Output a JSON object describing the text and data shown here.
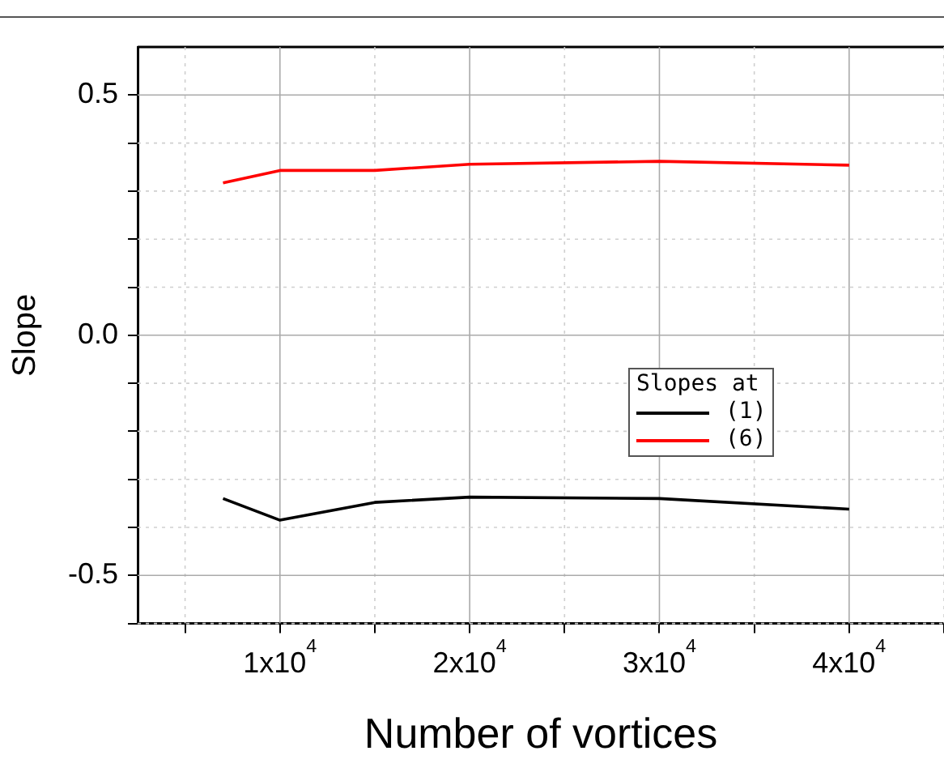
{
  "chart_data": {
    "type": "line",
    "xlabel": "Number of vortices",
    "ylabel": "Slope",
    "legend_title": "Slopes at",
    "xlim": [
      2500,
      45000
    ],
    "ylim": [
      -0.6,
      0.6
    ],
    "xticks": [
      {
        "value": 5000,
        "label": null
      },
      {
        "value": 10000,
        "label": "1x10$^{4}$"
      },
      {
        "value": 15000,
        "label": null
      },
      {
        "value": 20000,
        "label": "2x10$^{4}$"
      },
      {
        "value": 25000,
        "label": null
      },
      {
        "value": 30000,
        "label": "3x10$^{4}$"
      },
      {
        "value": 35000,
        "label": null
      },
      {
        "value": 40000,
        "label": "4x10$^{4}$"
      },
      {
        "value": 45000,
        "label": null
      }
    ],
    "yticks": [
      {
        "value": -0.6,
        "label": null
      },
      {
        "value": -0.5,
        "label": "-0.5"
      },
      {
        "value": -0.4,
        "label": null
      },
      {
        "value": -0.3,
        "label": null
      },
      {
        "value": -0.2,
        "label": null
      },
      {
        "value": -0.1,
        "label": null
      },
      {
        "value": 0,
        "label": "0.0"
      },
      {
        "value": 0.1,
        "label": null
      },
      {
        "value": 0.2,
        "label": null
      },
      {
        "value": 0.3,
        "label": null
      },
      {
        "value": 0.4,
        "label": null
      },
      {
        "value": 0.5,
        "label": "0.5"
      }
    ],
    "x": [
      7000,
      10000,
      15000,
      20000,
      30000,
      40000
    ],
    "series": [
      {
        "name": "(1)",
        "color": "#000000",
        "values": [
          -0.34,
          -0.385,
          -0.348,
          -0.337,
          -0.34,
          -0.362
        ]
      },
      {
        "name": "(6)",
        "color": "#ff0000",
        "values": [
          0.317,
          0.343,
          0.343,
          0.356,
          0.362,
          0.354
        ]
      }
    ],
    "grid": true,
    "legend": "right",
    "marker": "none",
    "line_style": "solid"
  }
}
